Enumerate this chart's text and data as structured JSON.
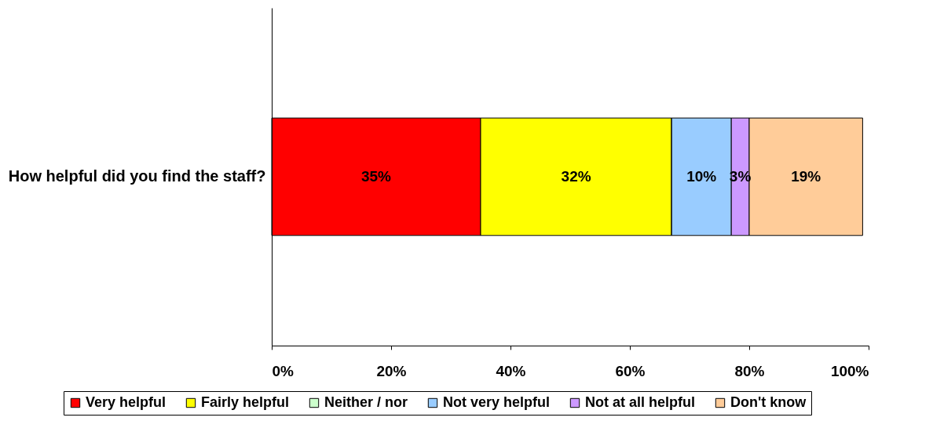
{
  "chart_data": {
    "type": "bar",
    "orientation": "horizontal",
    "stacked": true,
    "categories": [
      "How helpful did you find the staff?"
    ],
    "series": [
      {
        "name": "Very helpful",
        "color": "#ff0000",
        "values": [
          35
        ],
        "value_labels": [
          "35%"
        ]
      },
      {
        "name": "Fairly helpful",
        "color": "#ffff00",
        "values": [
          32
        ],
        "value_labels": [
          "32%"
        ]
      },
      {
        "name": "Neither / nor",
        "color": "#ccffcc",
        "values": [
          0
        ],
        "value_labels": [
          null
        ]
      },
      {
        "name": "Not very helpful",
        "color": "#99ccff",
        "values": [
          10
        ],
        "value_labels": [
          "10%"
        ]
      },
      {
        "name": "Not at all helpful",
        "color": "#cc99ff",
        "values": [
          3
        ],
        "value_labels": [
          "3%"
        ]
      },
      {
        "name": "Don't know",
        "color": "#ffcc99",
        "values": [
          19
        ],
        "value_labels": [
          "19%"
        ]
      }
    ],
    "xlim": [
      0,
      100
    ],
    "xticks": [
      {
        "value": 0,
        "label": "0%"
      },
      {
        "value": 20,
        "label": "20%"
      },
      {
        "value": 40,
        "label": "40%"
      },
      {
        "value": 60,
        "label": "60%"
      },
      {
        "value": 80,
        "label": "80%"
      },
      {
        "value": 100,
        "label": "100%"
      }
    ],
    "grid": false,
    "legend": "bottom"
  }
}
